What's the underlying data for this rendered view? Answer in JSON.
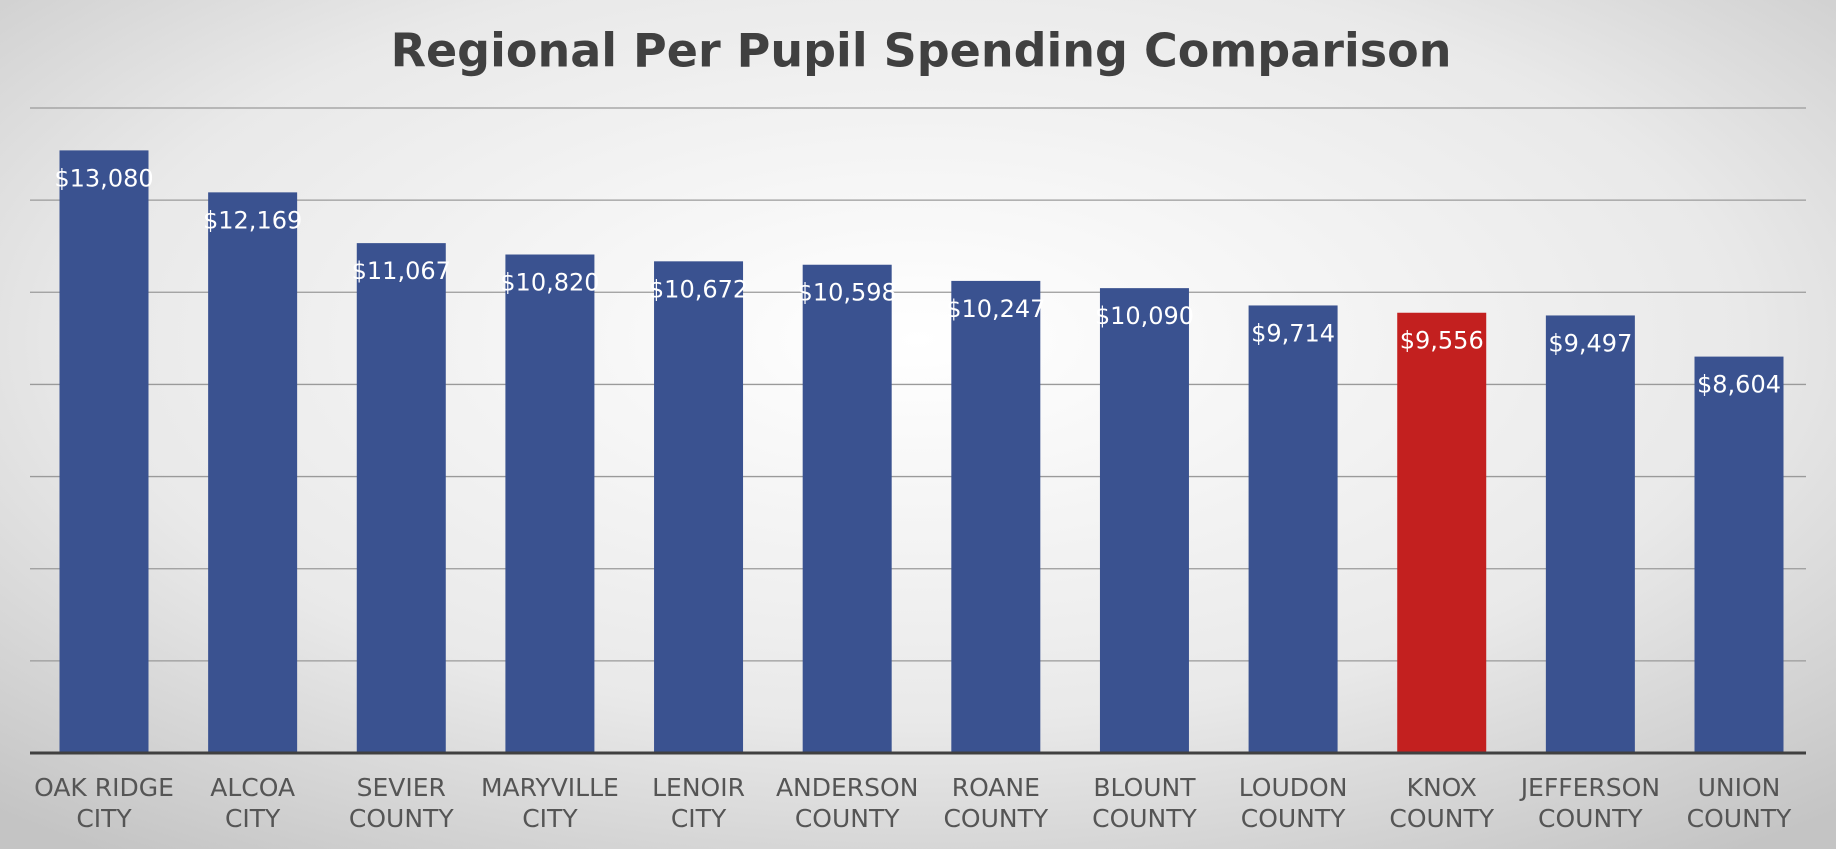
{
  "chart_data": {
    "type": "bar",
    "title": "Regional Per Pupil Spending Comparison",
    "categories": [
      "OAK RIDGE CITY",
      "ALCOA CITY",
      "SEVIER COUNTY",
      "MARYVILLE CITY",
      "LENOIR CITY",
      "ANDERSON COUNTY",
      "ROANE COUNTY",
      "BLOUNT COUNTY",
      "LOUDON COUNTY",
      "KNOX COUNTY",
      "JEFFERSON COUNTY",
      "UNION COUNTY"
    ],
    "values": [
      13080,
      12169,
      11067,
      10820,
      10672,
      10598,
      10247,
      10090,
      9714,
      9556,
      9497,
      8604
    ],
    "value_labels": [
      "$13,080",
      "$12,169",
      "$11,067",
      "$10,820",
      "$10,672",
      "$10,598",
      "$10,247",
      "$10,090",
      "$9,714",
      "$9,556",
      "$9,497",
      "$8,604"
    ],
    "colors": [
      "#3a5290",
      "#3a5290",
      "#3a5290",
      "#3a5290",
      "#3a5290",
      "#3a5290",
      "#3a5290",
      "#3a5290",
      "#3a5290",
      "#c3201f",
      "#3a5290",
      "#3a5290"
    ],
    "ylim": [
      0,
      14000
    ],
    "yticks": [
      0,
      2000,
      4000,
      6000,
      8000,
      10000,
      12000,
      14000
    ],
    "grid": true
  }
}
